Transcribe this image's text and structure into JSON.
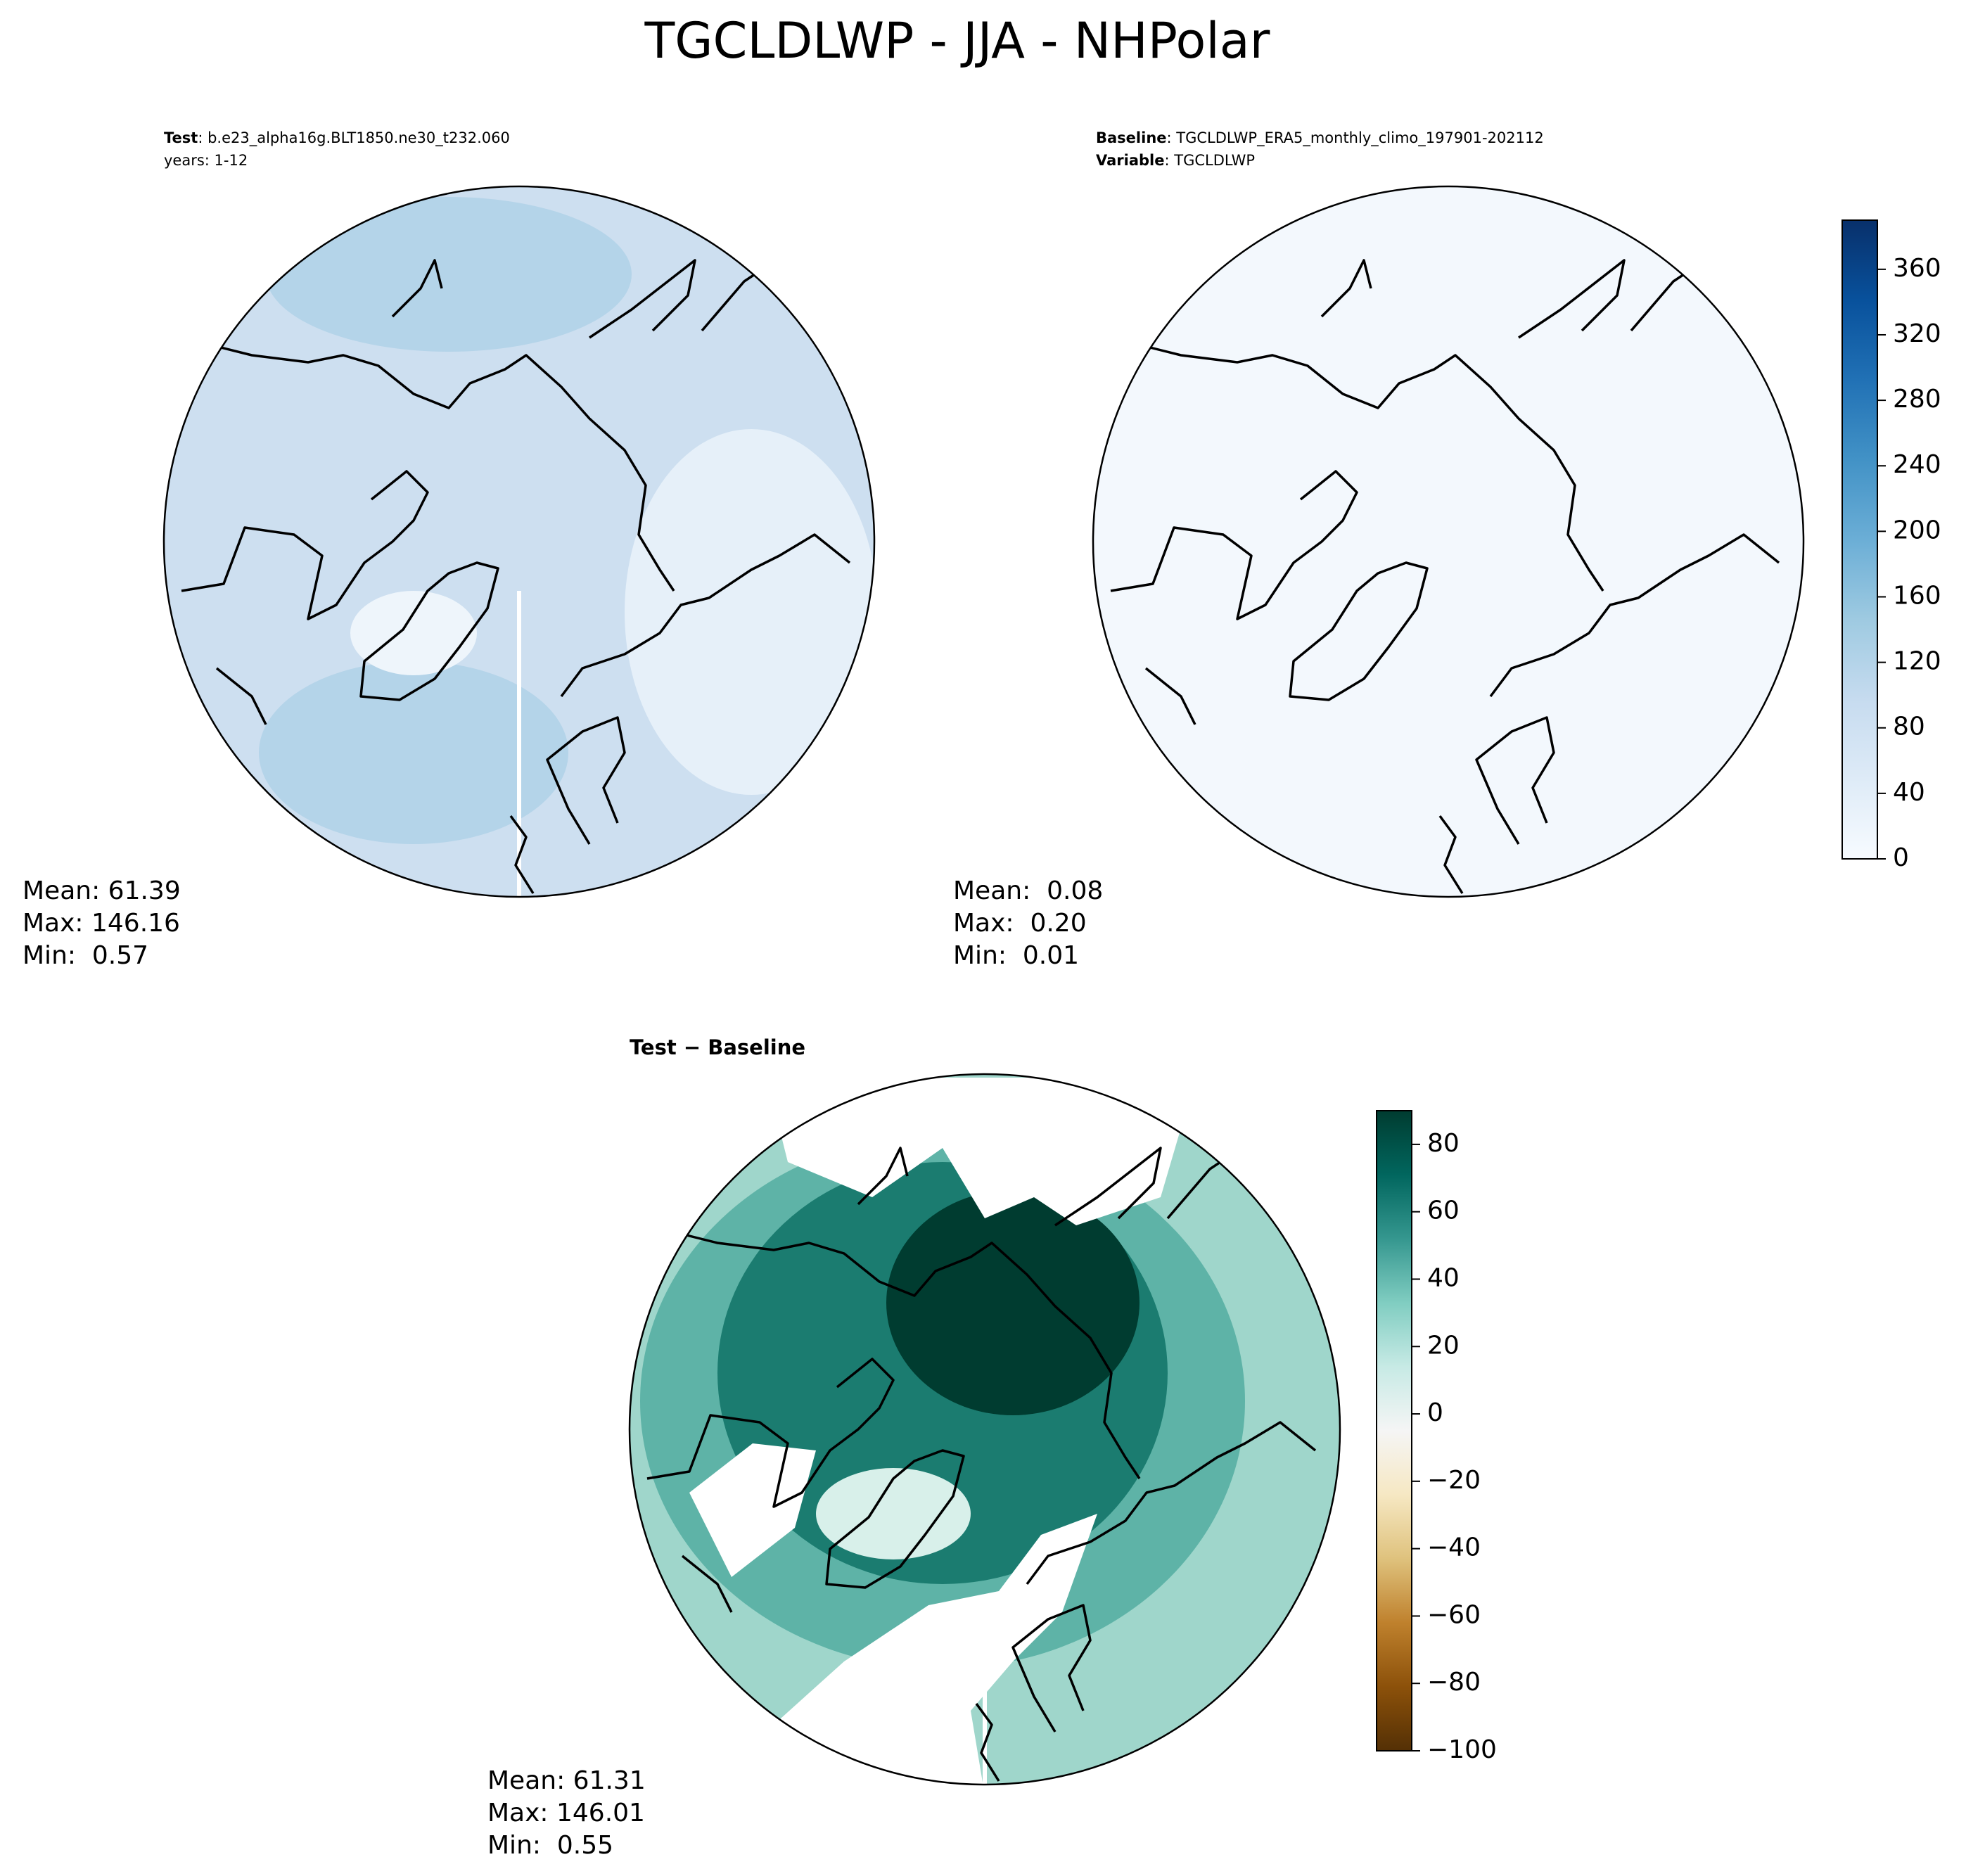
{
  "title": "TGCLDLWP - JJA - NHPolar",
  "panels": [
    {
      "title": {
        "label": "Test",
        "text": ": b.e23_alpha16g.BLT1850.ne30_t232.060"
      },
      "subtitle": {
        "text": "years: 1-12"
      },
      "stats": [
        "Mean: 61.39",
        "Max: 146.16",
        "Min:  0.57"
      ],
      "fill": "#cddff0"
    },
    {
      "title": {
        "label": "Baseline",
        "text": ": TGCLDLWP_ERA5_monthly_climo_197901-202112"
      },
      "subtitle": {
        "label": "Variable",
        "text": ": TGCLDLWP"
      },
      "stats": [
        "Mean:  0.08",
        "Max:  0.20",
        "Min:  0.01"
      ],
      "fill": "#f3f8fd"
    },
    {
      "title": {
        "label": "Test − Baseline"
      },
      "stats": [
        "Mean: 61.31",
        "Max: 146.01",
        "Min:  0.55"
      ],
      "fill": "#2a8c80"
    }
  ],
  "colorbars": [
    {
      "lim": [
        0,
        390
      ],
      "ticks": [
        0,
        40,
        80,
        120,
        160,
        200,
        240,
        280,
        320,
        360
      ],
      "colors": [
        "#f7fbff",
        "#deebf7",
        "#c6dbef",
        "#9ecae1",
        "#6baed6",
        "#4292c6",
        "#2171b5",
        "#08519c",
        "#08306b"
      ]
    },
    {
      "lim": [
        -100,
        90
      ],
      "ticks": [
        {
          "value": -100,
          "label": "−100"
        },
        {
          "value": -80,
          "label": "−80"
        },
        {
          "value": -60,
          "label": "−60"
        },
        {
          "value": -40,
          "label": "−40"
        },
        {
          "value": -20,
          "label": "−20"
        },
        0,
        20,
        40,
        60,
        80
      ],
      "colors": [
        "#543005",
        "#8c510a",
        "#bf812d",
        "#dfc27d",
        "#f6e8c3",
        "#f5f5f5",
        "#c7eae5",
        "#80cdc1",
        "#35978f",
        "#01665e",
        "#003c30"
      ]
    }
  ]
}
